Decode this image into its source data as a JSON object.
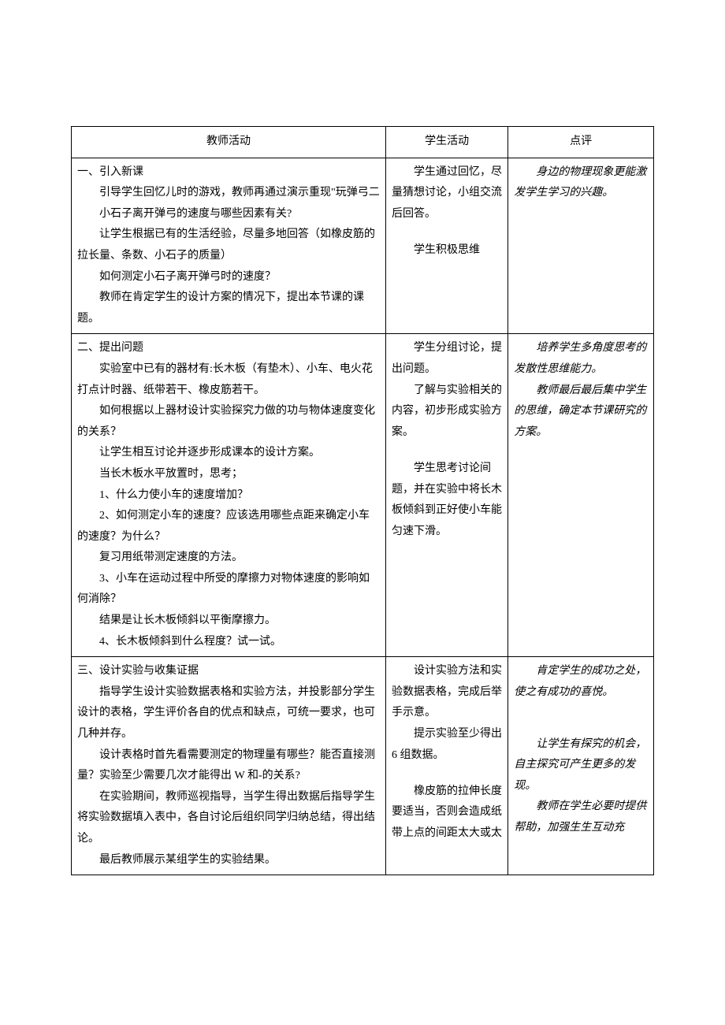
{
  "colors": {
    "border": "#000000",
    "text": "#000000",
    "background": "#ffffff"
  },
  "typography": {
    "font_family": "SimSun",
    "font_size_pt": 10.5,
    "line_height": 1.9
  },
  "table": {
    "column_widths_pct": [
      54,
      21,
      25
    ],
    "headers": {
      "teacher": "教师活动",
      "student": "学生活动",
      "comment": "点评"
    },
    "rows": [
      {
        "teacher": {
          "title": "一、引入新课",
          "paras": [
            "引导学生回忆儿时的游戏，教师再通过演示重现\"玩弹弓二",
            "小石子离开弹弓的速度与哪些因素有关?",
            "让学生根据已有的生活经验，尽量多地回答（如橡皮筋的拉长量、条数、小石子的质量）",
            "如何测定小石子离开弹弓时的速度？",
            "教师在肯定学生的设计方案的情况下，提出本节课的课题。"
          ]
        },
        "student": {
          "paras": [
            "学生通过回忆，尽量猜想讨论，小组交流后回答。",
            "",
            "学生积极思维"
          ]
        },
        "comment": {
          "paras": [
            "身边的物理现象更能激发学生学习的兴趣。"
          ]
        }
      },
      {
        "teacher": {
          "title": "二、提出问题",
          "paras": [
            "实验室中已有的器材有:长木板（有垫木）、小车、电火花打点计时器、纸带若干、橡皮筋若干。",
            "如何根据以上器材设计实验探究力做的功与物体速度变化的关系？",
            "让学生相互讨论并逐步形成课本的设计方案。",
            "当长木板水平放置时，思考；",
            "1、什么力使小车的速度增加？",
            "2、如何测定小车的速度？应该选用哪些点距来确定小车的速度？为什么？",
            "复习用纸带测定速度的方法。",
            "3、小车在运动过程中所受的摩擦力对物体速度的影响如何消除？",
            "结果是让长木板倾斜以平衡摩擦力。",
            "4、长木板倾斜到什么程度？试一试。"
          ]
        },
        "student": {
          "paras": [
            "学生分组讨论，提出问题。",
            "了解与实验相关的内容，初步形成实验方案。",
            "",
            "学生思考讨论间题，并在实验中将长木板倾斜到正好使小车能匀速下滑。"
          ]
        },
        "comment": {
          "paras": [
            "培养学生多角度思考的发散性思维能力。",
            "教师最后最后集中学生的思维，确定本节课研究的方案。"
          ]
        }
      },
      {
        "teacher": {
          "title": "三、设计实验与收集证据",
          "paras": [
            "指导学生设计实验数据表格和实验方法，并投影部分学生设计的表格，学生评价各自的优点和缺点，可统一要求，也可几种并存。",
            "设计表格时首先看需要测定的物理量有哪些？能否直接测量？实验至少需要几次才能得出 W 和-的关系?",
            "在实验期间，教师巡视指导，当学生得出数据后指导学生将实验数据填入表中，各自讨论后组织同学归纳总结，得出结论。",
            "最后教师展示某组学生的实验结果。"
          ]
        },
        "student": {
          "paras": [
            "设计实验方法和实验数据表格，完成后举手示意。",
            "提示实验至少得出 6 组数据。",
            "",
            "橡皮筋的拉伸长度要适当，否则会造成纸带上点的间距太大或太"
          ]
        },
        "comment": {
          "paras": [
            "肯定学生的成功之处，使之有成功的喜悦。",
            "",
            "",
            "让学生有探究的机会，自主探究可产生更多的发现。",
            "教师在学生必要时提供帮助，加强生生互动充"
          ]
        }
      }
    ]
  }
}
